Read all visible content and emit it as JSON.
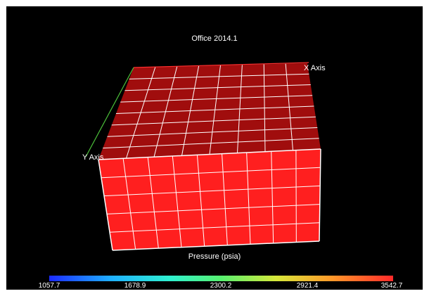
{
  "viewer": {
    "title": "Office 2014.1",
    "x_axis_label": "X Axis",
    "y_axis_label": "Y Axis"
  },
  "grid": {
    "top_rows": 8,
    "top_cols": 8,
    "front_rows": 5,
    "front_cols": 9,
    "top_color": "#a00d0d",
    "front_color": "#ff1f1f",
    "grid_line_color": "#ffffff",
    "x_axis_color": "#ff3030",
    "y_axis_color": "#4cc13a"
  },
  "legend": {
    "title": "Pressure (psia)",
    "ticks": [
      "1057.7",
      "1678.9",
      "2300.2",
      "2921.4",
      "3542.7"
    ],
    "colormap": "rainbow-blue-to-red"
  }
}
